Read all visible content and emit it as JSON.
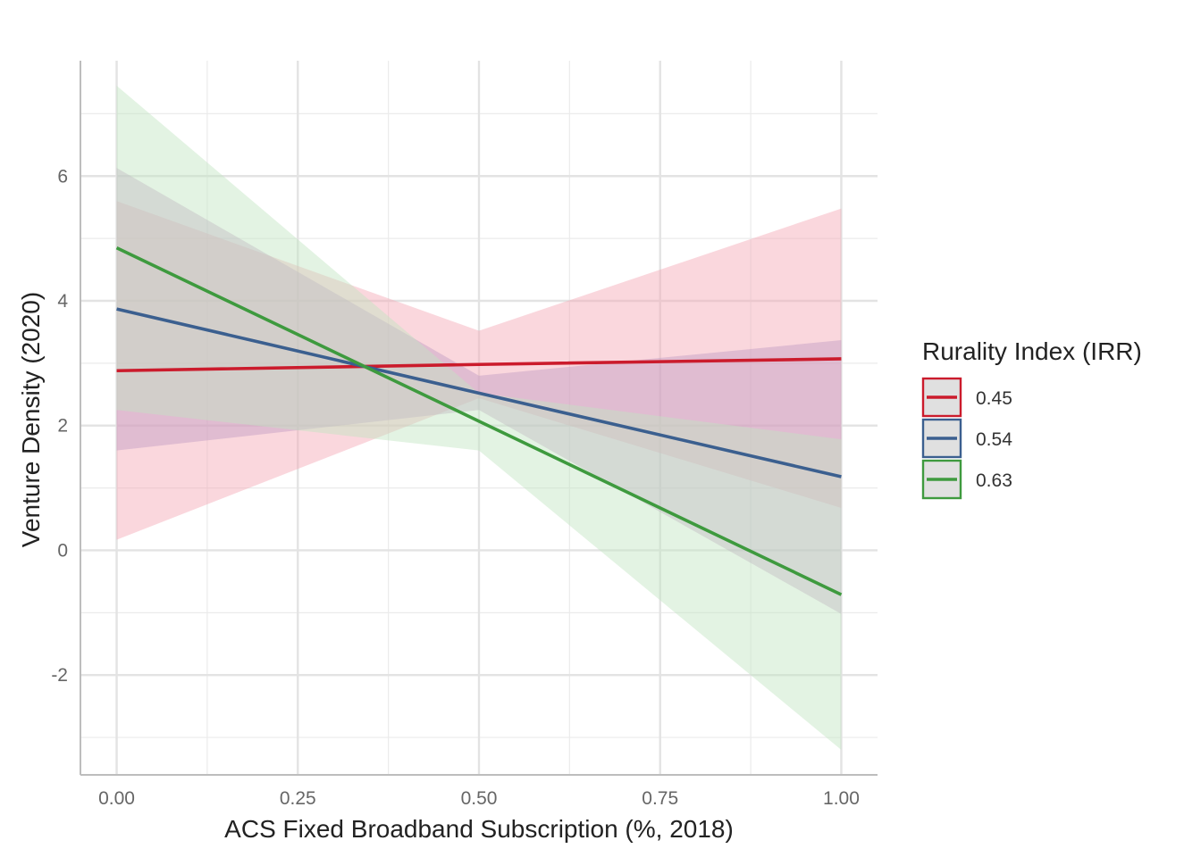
{
  "chart_data": {
    "type": "line",
    "title": "",
    "xlabel": "ACS Fixed Broadband Subscription (%, 2018)",
    "ylabel": "Venture Density (2020)",
    "xlim": [
      -0.05,
      1.05
    ],
    "ylim": [
      -3.6,
      7.85
    ],
    "x_ticks": [
      0,
      0.25,
      0.5,
      0.75,
      1
    ],
    "x_tick_labels": [
      "0.00",
      "0.25",
      "0.50",
      "0.75",
      "1.00"
    ],
    "x_minor_ticks": [
      0.125,
      0.375,
      0.625,
      0.875
    ],
    "y_ticks": [
      -2,
      0,
      2,
      4,
      6
    ],
    "y_tick_labels": [
      "-2",
      "0",
      "2",
      "4",
      "6"
    ],
    "y_minor_ticks": [
      -3,
      -1,
      1,
      3,
      5,
      7
    ],
    "grid": true,
    "legend": {
      "title": "Rurality Index (IRR)",
      "position": "right"
    },
    "series": [
      {
        "name": "0.45",
        "color": "#CB1B2C",
        "fill_color": "#F4A6B3",
        "x": [
          0,
          0.5,
          1
        ],
        "y": [
          2.88,
          2.98,
          3.07
        ],
        "lower": [
          0.17,
          2.44,
          0.68
        ],
        "upper": [
          5.6,
          3.52,
          5.48
        ]
      },
      {
        "name": "0.54",
        "color": "#3B5F8F",
        "fill_color": "#C19CC4",
        "x": [
          0,
          0.5,
          1
        ],
        "y": [
          3.87,
          2.52,
          1.18
        ],
        "lower": [
          1.6,
          2.25,
          -1.02
        ],
        "upper": [
          6.13,
          2.8,
          3.37
        ]
      },
      {
        "name": "0.63",
        "color": "#3E9A3E",
        "fill_color": "#C2E5C0",
        "x": [
          0,
          0.5,
          1
        ],
        "y": [
          4.85,
          2.07,
          -0.71
        ],
        "lower": [
          2.25,
          1.6,
          -3.2
        ],
        "upper": [
          7.45,
          2.52,
          1.78
        ]
      }
    ]
  }
}
